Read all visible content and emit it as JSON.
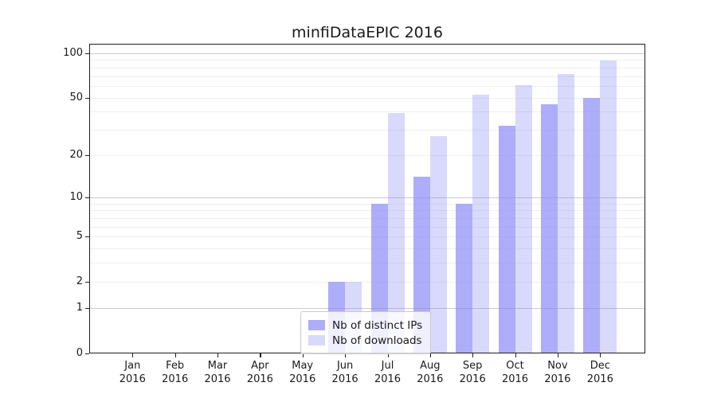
{
  "chart_data": {
    "type": "bar",
    "title": "minfiDataEPIC 2016",
    "categories": [
      "Jan",
      "Feb",
      "Mar",
      "Apr",
      "May",
      "Jun",
      "Jul",
      "Aug",
      "Sep",
      "Oct",
      "Nov",
      "Dec"
    ],
    "category_year": "2016",
    "series": [
      {
        "name": "Nb of distinct IPs",
        "color": "rgba(130,130,246,0.66)",
        "values": [
          0,
          0,
          0,
          0,
          0,
          2,
          9,
          14,
          9,
          32,
          45,
          50
        ]
      },
      {
        "name": "Nb of downloads",
        "color": "rgba(130,130,246,0.30)",
        "values": [
          0,
          0,
          0,
          0,
          0,
          2,
          39,
          27,
          52,
          61,
          72,
          89
        ]
      }
    ],
    "xlabel": "",
    "ylabel": "",
    "y_axis": {
      "scale": "log1p",
      "tick_values": [
        0,
        1,
        2,
        5,
        10,
        20,
        50,
        100
      ],
      "tick_labels": [
        "0",
        "1",
        "2",
        "5",
        "10",
        "20",
        "50",
        "100"
      ],
      "gridline_values": [
        1,
        2,
        3,
        4,
        5,
        6,
        7,
        8,
        9,
        10,
        20,
        30,
        40,
        50,
        60,
        70,
        80,
        90,
        100
      ],
      "major_gridline_values": [
        1,
        10,
        100
      ],
      "ylim": [
        0,
        120
      ],
      "major_grid_color": "#cccccc",
      "minor_grid_color": "#efefef"
    },
    "legend": {
      "position": "lower center",
      "entries": [
        "Nb of distinct IPs",
        "Nb of downloads"
      ]
    }
  }
}
